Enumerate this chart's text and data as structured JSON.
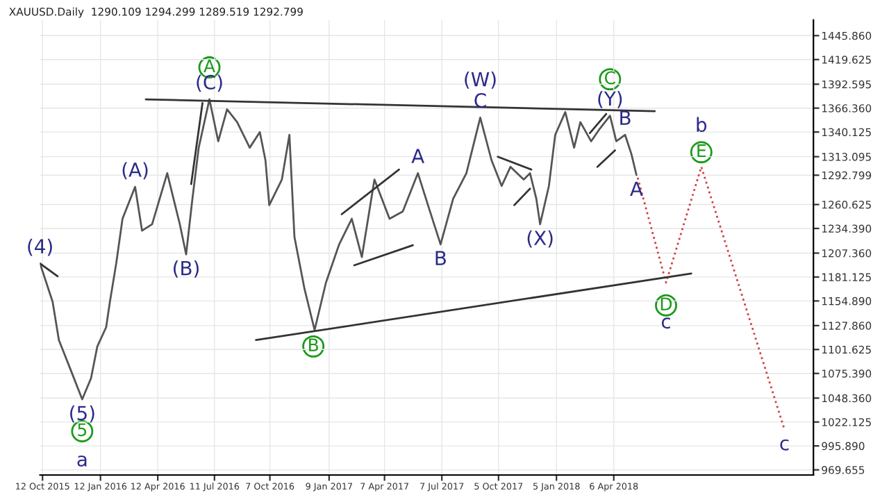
{
  "chart_data": {
    "type": "line",
    "title": "XAUUSD.Daily  1290.109 1294.299 1289.519 1292.799",
    "legend": false,
    "series": [
      {
        "color": "#555555",
        "line_style": "solid",
        "x": [
          "2015-10-08",
          "2015-10-28",
          "2015-11-07",
          "2015-11-27",
          "2015-12-14",
          "2015-12-28",
          "2016-01-07",
          "2016-01-21",
          "2016-01-27",
          "2016-02-06",
          "2016-02-16",
          "2016-03-07",
          "2016-03-18",
          "2016-04-03",
          "2016-04-27",
          "2016-05-17",
          "2016-05-27",
          "2016-06-06",
          "2016-06-16",
          "2016-07-03",
          "2016-07-17",
          "2016-07-31",
          "2016-08-16",
          "2016-09-05",
          "2016-09-21",
          "2016-09-30",
          "2016-10-06",
          "2016-10-26",
          "2016-11-07",
          "2016-11-15",
          "2016-12-01",
          "2016-12-17",
          "2017-01-04",
          "2017-01-25",
          "2017-02-14",
          "2017-03-02",
          "2017-03-22",
          "2017-04-15",
          "2017-05-06",
          "2017-05-30",
          "2017-06-15",
          "2017-07-05",
          "2017-07-25",
          "2017-08-15",
          "2017-09-06",
          "2017-09-24",
          "2017-10-10",
          "2017-10-24",
          "2017-11-14",
          "2017-11-24",
          "2017-12-04",
          "2017-12-10",
          "2017-12-24",
          "2018-01-03",
          "2018-01-19",
          "2018-02-02",
          "2018-02-12",
          "2018-03-01",
          "2018-03-15",
          "2018-03-31",
          "2018-04-10",
          "2018-04-24",
          "2018-05-04",
          "2018-05-12"
        ],
        "values": [
          1196,
          1154,
          1112,
          1077,
          1047,
          1070,
          1105,
          1126,
          1154,
          1196,
          1245,
          1280,
          1232,
          1239,
          1295,
          1239,
          1206,
          1267,
          1323,
          1376,
          1330,
          1365,
          1351,
          1323,
          1340,
          1309,
          1260,
          1288,
          1337,
          1225,
          1168,
          1123,
          1175,
          1217,
          1245,
          1203,
          1288,
          1245,
          1253,
          1295,
          1260,
          1217,
          1267,
          1295,
          1356,
          1309,
          1281,
          1302,
          1288,
          1295,
          1267,
          1239,
          1281,
          1337,
          1362,
          1323,
          1351,
          1330,
          1344,
          1358,
          1330,
          1337,
          1316,
          1293
        ]
      },
      {
        "type": "line",
        "color": "#d04040",
        "line_style": "dotted",
        "x": [
          "2018-05-14",
          "2018-06-28",
          "2018-08-23",
          "2019-01-02"
        ],
        "values": [
          1290,
          1175,
          1302,
          1014
        ]
      },
      {
        "type": "line",
        "color": "#333333",
        "line_style": "solid",
        "x": [
          "2016-03-24",
          "2018-06-10"
        ],
        "values": [
          1376,
          1363
        ]
      },
      {
        "type": "line",
        "color": "#333333",
        "line_style": "solid",
        "x": [
          "2016-09-15",
          "2018-08-07"
        ],
        "values": [
          1112,
          1185
        ]
      },
      {
        "type": "line",
        "color": "#333333",
        "line_style": "solid",
        "x": [
          "2015-10-08",
          "2015-11-05"
        ],
        "values": [
          1196,
          1182
        ]
      },
      {
        "type": "line",
        "color": "#333333",
        "line_style": "solid",
        "x": [
          "2016-06-04",
          "2016-06-22"
        ],
        "values": [
          1283,
          1372
        ]
      },
      {
        "type": "line",
        "color": "#333333",
        "line_style": "solid",
        "x": [
          "2017-01-29",
          "2017-04-30"
        ],
        "values": [
          1250,
          1299
        ]
      },
      {
        "type": "line",
        "color": "#333333",
        "line_style": "solid",
        "x": [
          "2017-02-18",
          "2017-05-22"
        ],
        "values": [
          1194,
          1216
        ]
      },
      {
        "type": "line",
        "color": "#333333",
        "line_style": "solid",
        "x": [
          "2017-10-04",
          "2017-11-26"
        ],
        "values": [
          1313,
          1299
        ]
      },
      {
        "type": "line",
        "color": "#333333",
        "line_style": "solid",
        "x": [
          "2017-10-30",
          "2017-11-24"
        ],
        "values": [
          1260,
          1278
        ]
      },
      {
        "type": "line",
        "color": "#333333",
        "line_style": "solid",
        "x": [
          "2018-02-27",
          "2018-03-25"
        ],
        "values": [
          1339,
          1360
        ]
      },
      {
        "type": "line",
        "color": "#333333",
        "line_style": "solid",
        "x": [
          "2018-03-11",
          "2018-04-08"
        ],
        "values": [
          1302,
          1320
        ]
      },
      {
        "type": "scatter",
        "marker": "circle",
        "name": "5",
        "color": "#1a9a1a",
        "x": [
          "2015-12-14"
        ],
        "values": [
          1012
        ]
      },
      {
        "type": "scatter",
        "marker": "circle",
        "name": "A",
        "color": "#1a9a1a",
        "x": [
          "2016-07-03"
        ],
        "values": [
          1411
        ]
      },
      {
        "type": "scatter",
        "marker": "circle",
        "name": "B",
        "color": "#1a9a1a",
        "x": [
          "2016-12-15"
        ],
        "values": [
          1105
        ]
      },
      {
        "type": "scatter",
        "marker": "circle",
        "name": "C",
        "color": "#1a9a1a",
        "x": [
          "2018-03-31"
        ],
        "values": [
          1398
        ]
      },
      {
        "type": "scatter",
        "marker": "circle",
        "name": "D",
        "color": "#1a9a1a",
        "x": [
          "2018-06-28"
        ],
        "values": [
          1150
        ]
      },
      {
        "type": "scatter",
        "marker": "circle",
        "name": "E",
        "color": "#1a9a1a",
        "x": [
          "2018-08-23"
        ],
        "values": [
          1318
        ]
      }
    ],
    "annotations": [
      {
        "text": "(4)",
        "x": "2015-10-08",
        "y": 1196
      },
      {
        "text": "(5)",
        "x": "2015-12-14",
        "y": 1047
      },
      {
        "text": "a",
        "x": "2015-12-14",
        "y": 1047
      },
      {
        "text": "(A)",
        "x": "2016-03-07",
        "y": 1280
      },
      {
        "text": "(B)",
        "x": "2016-05-27",
        "y": 1206
      },
      {
        "text": "(C)",
        "x": "2016-07-03",
        "y": 1376
      },
      {
        "text": "A",
        "x": "2017-05-30",
        "y": 1295
      },
      {
        "text": "B",
        "x": "2017-07-05",
        "y": 1217
      },
      {
        "text": "C",
        "x": "2017-09-06",
        "y": 1356
      },
      {
        "text": "(W)",
        "x": "2017-09-06",
        "y": 1356
      },
      {
        "text": "(X)",
        "x": "2017-12-10",
        "y": 1239
      },
      {
        "text": "(Y)",
        "x": "2018-03-31",
        "y": 1358
      },
      {
        "text": "B",
        "x": "2018-04-24",
        "y": 1337
      },
      {
        "text": "A",
        "x": "2018-05-12",
        "y": 1293
      },
      {
        "text": "c",
        "x": "2018-06-28",
        "y": 1175
      },
      {
        "text": "b",
        "x": "2018-08-23",
        "y": 1302
      },
      {
        "text": "c",
        "x": "2019-01-02",
        "y": 1014
      }
    ],
    "xlim": [
      "2015-10-08",
      "2019-02-17"
    ],
    "xticks": [
      {
        "value": "2015-10-12",
        "label": "12 Oct 2015"
      },
      {
        "value": "2016-01-12",
        "label": "12 Jan 2016"
      },
      {
        "value": "2016-04-12",
        "label": "12 Apr 2016"
      },
      {
        "value": "2016-07-11",
        "label": "11 Jul 2016"
      },
      {
        "value": "2016-10-07",
        "label": "7 Oct 2016"
      },
      {
        "value": "2017-01-09",
        "label": "9 Jan 2017"
      },
      {
        "value": "2017-04-07",
        "label": "7 Apr 2017"
      },
      {
        "value": "2017-07-07",
        "label": "7 Jul 2017"
      },
      {
        "value": "2017-10-05",
        "label": "5 Oct 2017"
      },
      {
        "value": "2018-01-05",
        "label": "5 Jan 2018"
      },
      {
        "value": "2018-04-06",
        "label": "6 Apr 2018"
      }
    ],
    "ylim": [
      964,
      1463
    ],
    "yticks": [
      {
        "value": 969.655,
        "label": "969.655"
      },
      {
        "value": 995.89,
        "label": "995.890"
      },
      {
        "value": 1022.125,
        "label": "1022.125"
      },
      {
        "value": 1048.36,
        "label": "1048.360"
      },
      {
        "value": 1075.39,
        "label": "1075.390"
      },
      {
        "value": 1101.625,
        "label": "1101.625"
      },
      {
        "value": 1127.86,
        "label": "1127.860"
      },
      {
        "value": 1154.89,
        "label": "1154.890"
      },
      {
        "value": 1181.125,
        "label": "1181.125"
      },
      {
        "value": 1207.36,
        "label": "1207.360"
      },
      {
        "value": 1234.39,
        "label": "1234.390"
      },
      {
        "value": 1260.625,
        "label": "1260.625"
      },
      {
        "value": 1292.799,
        "label": "1292.799"
      },
      {
        "value": 1313.095,
        "label": "1313.095"
      },
      {
        "value": 1340.125,
        "label": "1340.125"
      },
      {
        "value": 1366.36,
        "label": "1366.360"
      },
      {
        "value": 1392.595,
        "label": "1392.595"
      },
      {
        "value": 1419.625,
        "label": "1419.625"
      },
      {
        "value": 1445.86,
        "label": "1445.860"
      }
    ],
    "grid": true
  }
}
